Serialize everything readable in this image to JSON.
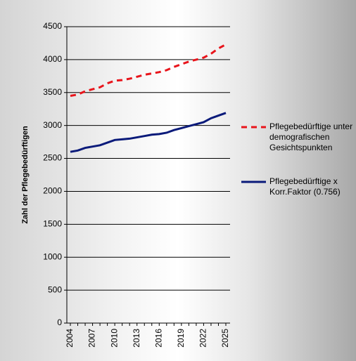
{
  "chart_data": {
    "type": "line",
    "y_label": "Zahl der Pflegebedürftigen",
    "x": [
      2004,
      2005,
      2006,
      2007,
      2008,
      2009,
      2010,
      2011,
      2012,
      2013,
      2014,
      2015,
      2016,
      2017,
      2018,
      2019,
      2020,
      2021,
      2022,
      2023,
      2024,
      2025
    ],
    "series": [
      {
        "name": "Pflegebedürftige unter demografischen Gesichtspunkten",
        "color": "#e8141b",
        "dash": true,
        "values": [
          3450,
          3470,
          3520,
          3550,
          3580,
          3640,
          3680,
          3690,
          3710,
          3740,
          3770,
          3790,
          3810,
          3840,
          3890,
          3930,
          3970,
          4000,
          4030,
          4090,
          4170,
          4230
        ]
      },
      {
        "name": "Pflegebedürftige x Korr.Faktor (0.756)",
        "color": "#0a1a7a",
        "dash": false,
        "values": [
          2600,
          2620,
          2660,
          2680,
          2700,
          2740,
          2780,
          2790,
          2800,
          2820,
          2840,
          2860,
          2870,
          2890,
          2930,
          2960,
          2990,
          3020,
          3050,
          3110,
          3150,
          3190
        ]
      }
    ],
    "xlim": [
      2004,
      2025
    ],
    "xticks": [
      2004,
      2007,
      2010,
      2013,
      2016,
      2019,
      2022,
      2025
    ],
    "ylim": [
      0,
      4500
    ],
    "yticks": [
      0,
      500,
      1000,
      1500,
      2000,
      2500,
      3000,
      3500,
      4000,
      4500
    ],
    "grid": true,
    "legend": "right"
  }
}
